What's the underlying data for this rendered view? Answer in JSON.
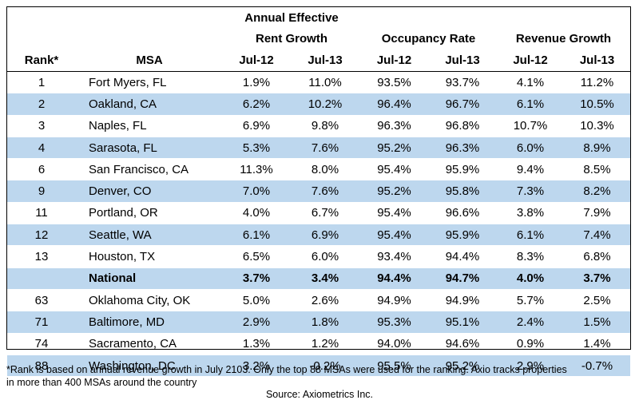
{
  "headers": {
    "group_rent_line1": "Annual Effective",
    "group_rent_line2": "Rent Growth",
    "group_occupancy": "Occupancy Rate",
    "group_revenue": "Revenue Growth",
    "rank": "Rank*",
    "msa": "MSA",
    "rent_jul12": "Jul-12",
    "rent_jul13": "Jul-13",
    "occ_jul12": "Jul-12",
    "occ_jul13": "Jul-13",
    "rev_jul12": "Jul-12",
    "rev_jul13": "Jul-13"
  },
  "rows": [
    {
      "rank": "1",
      "msa": "Fort Myers, FL",
      "rent12": "1.9%",
      "rent13": "11.0%",
      "occ12": "93.5%",
      "occ13": "93.7%",
      "rev12": "4.1%",
      "rev13": "11.2%"
    },
    {
      "rank": "2",
      "msa": "Oakland, CA",
      "rent12": "6.2%",
      "rent13": "10.2%",
      "occ12": "96.4%",
      "occ13": "96.7%",
      "rev12": "6.1%",
      "rev13": "10.5%"
    },
    {
      "rank": "3",
      "msa": "Naples, FL",
      "rent12": "6.9%",
      "rent13": "9.8%",
      "occ12": "96.3%",
      "occ13": "96.8%",
      "rev12": "10.7%",
      "rev13": "10.3%"
    },
    {
      "rank": "4",
      "msa": "Sarasota, FL",
      "rent12": "5.3%",
      "rent13": "7.6%",
      "occ12": "95.2%",
      "occ13": "96.3%",
      "rev12": "6.0%",
      "rev13": "8.9%"
    },
    {
      "rank": "6",
      "msa": "San Francisco, CA",
      "rent12": "11.3%",
      "rent13": "8.0%",
      "occ12": "95.4%",
      "occ13": "95.9%",
      "rev12": "9.4%",
      "rev13": "8.5%"
    },
    {
      "rank": "9",
      "msa": "Denver, CO",
      "rent12": "7.0%",
      "rent13": "7.6%",
      "occ12": "95.2%",
      "occ13": "95.8%",
      "rev12": "7.3%",
      "rev13": "8.2%"
    },
    {
      "rank": "11",
      "msa": "Portland, OR",
      "rent12": "4.0%",
      "rent13": "6.7%",
      "occ12": "95.4%",
      "occ13": "96.6%",
      "rev12": "3.8%",
      "rev13": "7.9%"
    },
    {
      "rank": "12",
      "msa": "Seattle, WA",
      "rent12": "6.1%",
      "rent13": "6.9%",
      "occ12": "95.4%",
      "occ13": "95.9%",
      "rev12": "6.1%",
      "rev13": "7.4%"
    },
    {
      "rank": "13",
      "msa": "Houston, TX",
      "rent12": "6.5%",
      "rent13": "6.0%",
      "occ12": "93.4%",
      "occ13": "94.4%",
      "rev12": "8.3%",
      "rev13": "6.8%"
    },
    {
      "rank": "",
      "msa": "National",
      "rent12": "3.7%",
      "rent13": "3.4%",
      "occ12": "94.4%",
      "occ13": "94.7%",
      "rev12": "4.0%",
      "rev13": "3.7%"
    },
    {
      "rank": "63",
      "msa": "Oklahoma City, OK",
      "rent12": "5.0%",
      "rent13": "2.6%",
      "occ12": "94.9%",
      "occ13": "94.9%",
      "rev12": "5.7%",
      "rev13": "2.5%"
    },
    {
      "rank": "71",
      "msa": "Baltimore, MD",
      "rent12": "2.9%",
      "rent13": "1.8%",
      "occ12": "95.3%",
      "occ13": "95.1%",
      "rev12": "2.4%",
      "rev13": "1.5%"
    },
    {
      "rank": "74",
      "msa": "Sacramento, CA",
      "rent12": "1.3%",
      "rent13": "1.2%",
      "occ12": "94.0%",
      "occ13": "94.6%",
      "rev12": "0.9%",
      "rev13": "1.4%"
    },
    {
      "rank": "88",
      "msa": "Washington, DC",
      "rent12": "3.2%",
      "rent13": "-0.2%",
      "occ12": "95.5%",
      "occ13": "95.2%",
      "rev12": "2.9%",
      "rev13": "-0.7%"
    }
  ],
  "footnote_line1": "*Rank is based on annual revenue growth in July 2103. Only the top 88 MSAs were used for the ranking. Axio tracks properties",
  "footnote_line2": "in more than 400 MSAs around the country",
  "source": "Source: Axiometrics Inc.",
  "colors": {
    "alt_row": "#bdd7ee",
    "border": "#000000"
  }
}
